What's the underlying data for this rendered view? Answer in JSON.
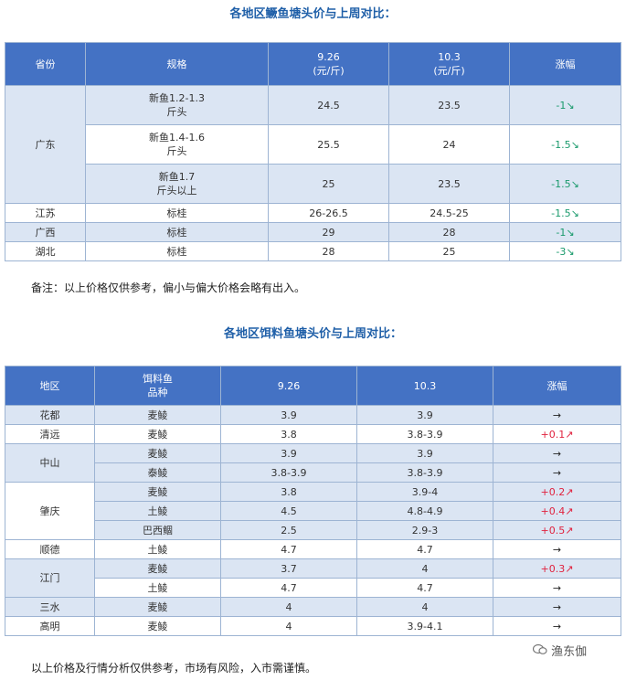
{
  "table1": {
    "title": "各地区鳜鱼塘头价与上周对比：",
    "headers": [
      "省份",
      "规格",
      "9.26\n(元/斤)",
      "10.3\n(元/斤)",
      "涨幅"
    ],
    "rows": [
      {
        "province": "广东",
        "spec": "新鱼1.2-1.3\n斤头",
        "p926": "24.5",
        "p103": "23.5",
        "change": "-1↘"
      },
      {
        "province": "",
        "spec": "新鱼1.4-1.6\n斤头",
        "p926": "25.5",
        "p103": "24",
        "change": "-1.5↘"
      },
      {
        "province": "",
        "spec": "新鱼1.7\n斤头以上",
        "p926": "25",
        "p103": "23.5",
        "change": "-1.5↘"
      },
      {
        "province": "江苏",
        "spec": "标桂",
        "p926": "26-26.5",
        "p103": "24.5-25",
        "change": "-1.5↘"
      },
      {
        "province": "广西",
        "spec": "标桂",
        "p926": "29",
        "p103": "28",
        "change": "-1↘"
      },
      {
        "province": "湖北",
        "spec": "标桂",
        "p926": "28",
        "p103": "25",
        "change": "-3↘"
      }
    ],
    "note": "备注：以上价格仅供参考，偏小与偏大价格会略有出入。"
  },
  "table2": {
    "title": "各地区饵料鱼塘头价与上周对比：",
    "headers": [
      "地区",
      "饵料鱼\n品种",
      "9.26",
      "10.3",
      "涨幅"
    ],
    "rows": [
      {
        "region": "花都",
        "variety": "麦鲮",
        "p926": "3.9",
        "p103": "3.9",
        "change": "→"
      },
      {
        "region": "清远",
        "variety": "麦鲮",
        "p926": "3.8",
        "p103": "3.8-3.9",
        "change": "+0.1↗"
      },
      {
        "region": "中山",
        "variety": "麦鲮",
        "p926": "3.9",
        "p103": "3.9",
        "change": "→"
      },
      {
        "region": "",
        "variety": "泰鲮",
        "p926": "3.8-3.9",
        "p103": "3.8-3.9",
        "change": "→"
      },
      {
        "region": "肇庆",
        "variety": "麦鲮",
        "p926": "3.8",
        "p103": "3.9-4",
        "change": "+0.2↗"
      },
      {
        "region": "",
        "variety": "土鲮",
        "p926": "4.5",
        "p103": "4.8-4.9",
        "change": "+0.4↗"
      },
      {
        "region": "",
        "variety": "巴西鲴",
        "p926": "2.5",
        "p103": "2.9-3",
        "change": "+0.5↗"
      },
      {
        "region": "顺德",
        "variety": "土鲮",
        "p926": "4.7",
        "p103": "4.7",
        "change": "→"
      },
      {
        "region": "江门",
        "variety": "麦鲮",
        "p926": "3.7",
        "p103": "4",
        "change": "+0.3↗"
      },
      {
        "region": "",
        "variety": "土鲮",
        "p926": "4.7",
        "p103": "4.7",
        "change": "→"
      },
      {
        "region": "三水",
        "variety": "麦鲮",
        "p926": "4",
        "p103": "4",
        "change": "→"
      },
      {
        "region": "高明",
        "variety": "麦鲮",
        "p926": "4",
        "p103": "3.9-4.1",
        "change": "→"
      }
    ],
    "note": "以上价格及行情分析仅供参考，市场有风险，入市需谨慎。"
  },
  "watermark": {
    "text": "渔东伽",
    "icon": "wechat-icon"
  },
  "colors": {
    "header_bg": "#4472c4",
    "alt_row_bg": "#dbe5f3",
    "title": "#1f5fa8",
    "down": "#1a9a6c",
    "up": "#e0223e"
  }
}
